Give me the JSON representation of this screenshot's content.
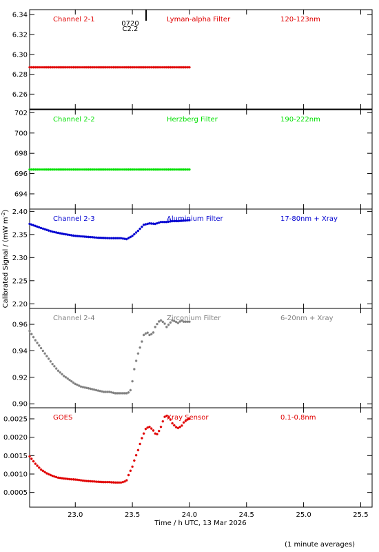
{
  "chart_data": {
    "type": "scatter",
    "xlabel": "Time / h UTC, 13 Mar 2026",
    "ylabel": "Calibrated Signal / (mW m",
    "ylabel_sup": "-2",
    "ylabel_close": ")",
    "footnote": "(1 minute averages)",
    "xlim": [
      22.6,
      25.6
    ],
    "xticks": [
      23.0,
      23.5,
      24.0,
      24.5,
      25.0,
      25.5
    ],
    "xtick_labels": [
      "23.0",
      "23.5",
      "24.0",
      "24.5",
      "25.0",
      "25.5"
    ],
    "annotation": {
      "lines": [
        "0720",
        "C2.2"
      ],
      "x": 23.62
    },
    "panels": [
      {
        "name": "Channel 2-1",
        "filter": "Lyman-alpha Filter",
        "band": "120-123nm",
        "color": "#e00000",
        "ylim": [
          6.245,
          6.345
        ],
        "yticks": [
          6.26,
          6.28,
          6.3,
          6.32,
          6.34
        ],
        "ytick_labels": [
          "6.26",
          "6.28",
          "6.30",
          "6.32",
          "6.34"
        ],
        "x": [
          22.6,
          22.8,
          23.0,
          23.2,
          23.4,
          23.6,
          23.8,
          24.0
        ],
        "y": [
          6.287,
          6.287,
          6.287,
          6.287,
          6.287,
          6.287,
          6.287,
          6.287
        ]
      },
      {
        "name": "Channel 2-2",
        "filter": "Herzberg Filter",
        "band": "190-222nm",
        "color": "#00e000",
        "ylim": [
          692.5,
          702.3
        ],
        "yticks": [
          694,
          696,
          698,
          700,
          702
        ],
        "ytick_labels": [
          "694",
          "696",
          "698",
          "700",
          "702"
        ],
        "x": [
          22.6,
          22.8,
          23.0,
          23.2,
          23.4,
          23.6,
          23.8,
          24.0
        ],
        "y": [
          696.4,
          696.4,
          696.4,
          696.4,
          696.4,
          696.4,
          696.4,
          696.4
        ]
      },
      {
        "name": "Channel 2-3",
        "filter": "Aluminium Filter",
        "band": "17-80nm + Xray",
        "color": "#0000d0",
        "ylim": [
          2.19,
          2.405
        ],
        "yticks": [
          2.2,
          2.25,
          2.3,
          2.35,
          2.4
        ],
        "ytick_labels": [
          "2.20",
          "2.25",
          "2.30",
          "2.35",
          "2.40"
        ],
        "x": [
          22.6,
          22.7,
          22.8,
          22.9,
          23.0,
          23.1,
          23.2,
          23.3,
          23.4,
          23.45,
          23.5,
          23.55,
          23.6,
          23.65,
          23.7,
          23.75,
          23.8,
          23.85,
          23.9,
          23.95,
          24.0
        ],
        "y": [
          2.373,
          2.364,
          2.356,
          2.351,
          2.347,
          2.345,
          2.343,
          2.342,
          2.342,
          2.34,
          2.347,
          2.358,
          2.371,
          2.374,
          2.373,
          2.377,
          2.377,
          2.379,
          2.379,
          2.38,
          2.381
        ]
      },
      {
        "name": "Channel 2-4",
        "filter": "Zirconium Filter",
        "band": "6-20nm + Xray",
        "color": "#808080",
        "ylim": [
          0.897,
          0.972
        ],
        "yticks": [
          0.9,
          0.92,
          0.94,
          0.96
        ],
        "ytick_labels": [
          "0.90",
          "0.92",
          "0.94",
          "0.96"
        ],
        "x": [
          22.6,
          22.65,
          22.7,
          22.75,
          22.8,
          22.85,
          22.9,
          22.95,
          23.0,
          23.05,
          23.1,
          23.15,
          23.2,
          23.25,
          23.3,
          23.35,
          23.4,
          23.45,
          23.48,
          23.5,
          23.52,
          23.55,
          23.58,
          23.6,
          23.63,
          23.65,
          23.68,
          23.7,
          23.73,
          23.75,
          23.78,
          23.8,
          23.83,
          23.85,
          23.88,
          23.9,
          23.93,
          23.95,
          24.0
        ],
        "y": [
          0.955,
          0.948,
          0.942,
          0.936,
          0.93,
          0.925,
          0.921,
          0.918,
          0.915,
          0.913,
          0.912,
          0.911,
          0.91,
          0.909,
          0.909,
          0.908,
          0.908,
          0.908,
          0.909,
          0.917,
          0.928,
          0.938,
          0.946,
          0.952,
          0.954,
          0.952,
          0.953,
          0.958,
          0.962,
          0.963,
          0.961,
          0.958,
          0.961,
          0.963,
          0.962,
          0.961,
          0.963,
          0.962,
          0.962
        ]
      },
      {
        "name": "GOES",
        "filter": "Xray Sensor",
        "band": "0.1-0.8nm",
        "color": "#e00000",
        "ylim": [
          0.0001,
          0.0028
        ],
        "yticks": [
          0.0005,
          0.001,
          0.0015,
          0.002,
          0.0025
        ],
        "ytick_labels": [
          "0.0005",
          "0.0010",
          "0.0015",
          "0.0020",
          "0.0025"
        ],
        "x": [
          22.6,
          22.65,
          22.7,
          22.75,
          22.8,
          22.85,
          22.9,
          22.95,
          23.0,
          23.05,
          23.1,
          23.15,
          23.2,
          23.25,
          23.3,
          23.35,
          23.4,
          23.43,
          23.45,
          23.47,
          23.5,
          23.52,
          23.55,
          23.58,
          23.6,
          23.62,
          23.65,
          23.68,
          23.7,
          23.72,
          23.75,
          23.78,
          23.8,
          23.83,
          23.85,
          23.88,
          23.9,
          23.93,
          23.95,
          23.98,
          24.0
        ],
        "y": [
          0.00148,
          0.00128,
          0.00112,
          0.00102,
          0.00095,
          0.0009,
          0.00088,
          0.00086,
          0.00085,
          0.00083,
          0.00081,
          0.0008,
          0.00079,
          0.00078,
          0.00078,
          0.00077,
          0.00077,
          0.00079,
          0.00083,
          0.001,
          0.0012,
          0.0014,
          0.00165,
          0.00195,
          0.0021,
          0.00225,
          0.00228,
          0.0022,
          0.0021,
          0.00208,
          0.00228,
          0.00255,
          0.00258,
          0.0025,
          0.00238,
          0.00228,
          0.00225,
          0.0023,
          0.0024,
          0.00248,
          0.0025
        ]
      }
    ]
  }
}
